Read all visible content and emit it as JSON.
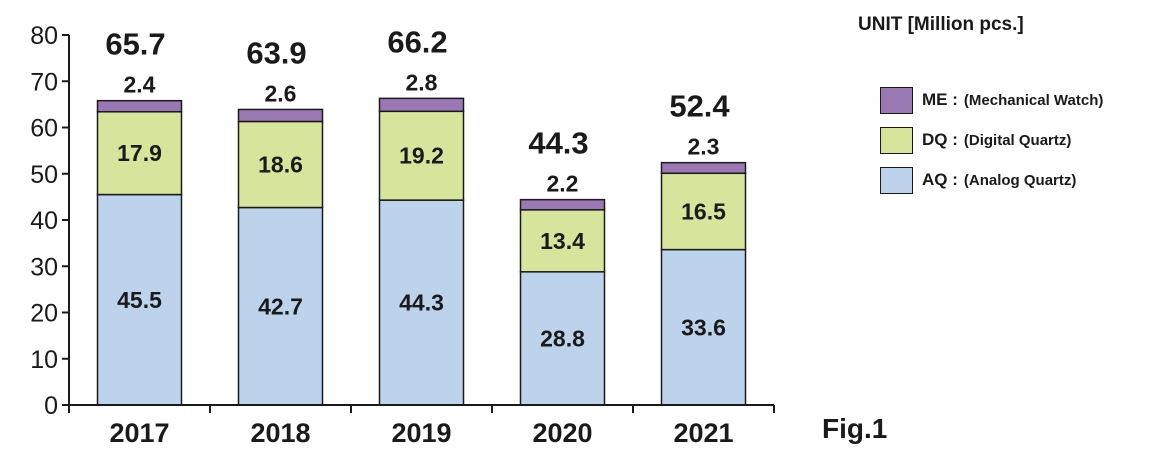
{
  "unit_label": "UNIT [Million pcs.]",
  "figure_label": "Fig.1",
  "chart_data": {
    "type": "bar",
    "stacked": true,
    "categories": [
      "2017",
      "2018",
      "2019",
      "2020",
      "2021"
    ],
    "series": [
      {
        "name": "AQ",
        "description": "(Analog Quartz)",
        "color": "#bdd3ec",
        "values": [
          45.5,
          42.7,
          44.3,
          28.8,
          33.6
        ]
      },
      {
        "name": "DQ",
        "description": "(Digital Quartz)",
        "color": "#d6e59b",
        "values": [
          17.9,
          18.6,
          19.2,
          13.4,
          16.5
        ]
      },
      {
        "name": "ME",
        "description": "(Mechanical Watch)",
        "color": "#9a78b4",
        "values": [
          2.4,
          2.6,
          2.8,
          2.2,
          2.3
        ]
      }
    ],
    "totals": [
      65.7,
      63.9,
      66.2,
      44.3,
      52.4
    ],
    "yticks": [
      0,
      10,
      20,
      30,
      40,
      50,
      60,
      70,
      80
    ],
    "ylim": [
      0,
      80
    ],
    "title": "",
    "xlabel": "",
    "ylabel": "",
    "grid": false,
    "legend_position": "right"
  }
}
